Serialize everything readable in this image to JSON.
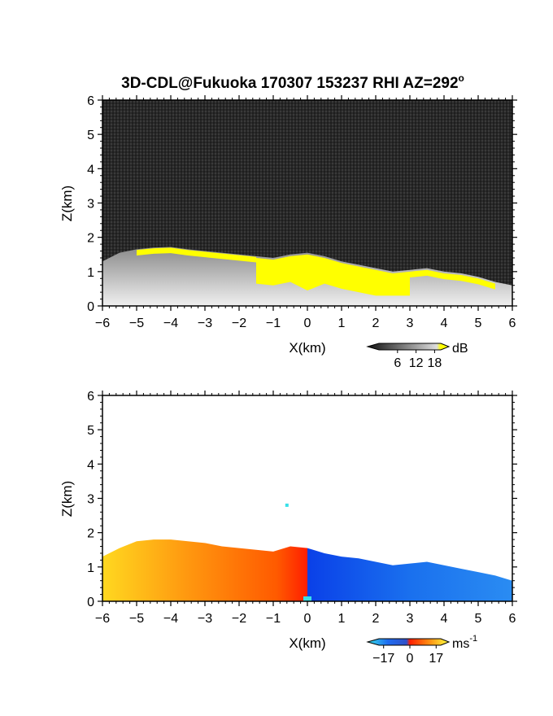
{
  "title": "3D-CDL@Fukuoka 170307 153237 RHI AZ=292",
  "title_degree_symbol": "o",
  "colors": {
    "background": "#ffffff",
    "reflectivity_high": "#ffff00",
    "velocity_toward_negative": "#1e6cf0",
    "velocity_positive": "#ff7a10",
    "velocity_near_zero": "#ff1e00",
    "velocity_low_extreme": "#38e0e8"
  },
  "chart_data": [
    {
      "type": "heatmap",
      "variable": "reflectivity",
      "xlabel": "X(km)",
      "ylabel": "Z(km)",
      "xlim": [
        -6,
        6
      ],
      "ylim": [
        0,
        6
      ],
      "x_ticks": [
        "-6",
        "-5",
        "-4",
        "-3",
        "-2",
        "-1",
        "0",
        "1",
        "2",
        "3",
        "4",
        "5",
        "6"
      ],
      "y_ticks": [
        "0",
        "1",
        "2",
        "3",
        "4",
        "5",
        "6"
      ],
      "colorbar": {
        "unit": "dB",
        "ticks": [
          "6",
          "12",
          "18"
        ],
        "range": [
          0,
          20
        ]
      },
      "echo_top_profile": {
        "x": [
          -6,
          -5.5,
          -5,
          -4.5,
          -4,
          -3.5,
          -3,
          -2.5,
          -2,
          -1.5,
          -1,
          -0.5,
          0,
          0.5,
          1,
          1.5,
          2,
          2.5,
          3,
          3.5,
          4,
          4.5,
          5,
          5.5,
          6
        ],
        "z": [
          1.3,
          1.55,
          1.65,
          1.7,
          1.72,
          1.65,
          1.6,
          1.55,
          1.5,
          1.45,
          1.4,
          1.5,
          1.55,
          1.45,
          1.3,
          1.2,
          1.1,
          1.0,
          1.05,
          1.1,
          1.0,
          0.95,
          0.85,
          0.7,
          0.6
        ]
      },
      "high_echo_region_above_18dB": "yellow area from about X=-1.5 to 3 km, Z up to ~1.5 km"
    },
    {
      "type": "heatmap",
      "variable": "doppler_velocity",
      "xlabel": "X(km)",
      "ylabel": "Z(km)",
      "xlim": [
        -6,
        6
      ],
      "ylim": [
        0,
        6
      ],
      "x_ticks": [
        "-6",
        "-5",
        "-4",
        "-3",
        "-2",
        "-1",
        "0",
        "1",
        "2",
        "3",
        "4",
        "5",
        "6"
      ],
      "y_ticks": [
        "0",
        "1",
        "2",
        "3",
        "4",
        "5",
        "6"
      ],
      "colorbar": {
        "unit": "ms",
        "unit_exponent": "-1",
        "ticks": [
          "-17",
          "0",
          "17"
        ],
        "range": [
          -20,
          20
        ]
      },
      "echo_top_profile": {
        "x": [
          -6,
          -5.5,
          -5,
          -4.5,
          -4,
          -3.5,
          -3,
          -2.5,
          -2,
          -1.5,
          -1,
          -0.5,
          0,
          0.5,
          1,
          1.5,
          2,
          2.5,
          3,
          3.5,
          4,
          4.5,
          5,
          5.5,
          6
        ],
        "z": [
          1.3,
          1.55,
          1.75,
          1.8,
          1.8,
          1.75,
          1.7,
          1.6,
          1.55,
          1.5,
          1.45,
          1.6,
          1.55,
          1.4,
          1.3,
          1.25,
          1.15,
          1.05,
          1.1,
          1.15,
          1.05,
          0.95,
          0.85,
          0.75,
          0.6
        ]
      },
      "sign_change_x_km": 0
    }
  ]
}
